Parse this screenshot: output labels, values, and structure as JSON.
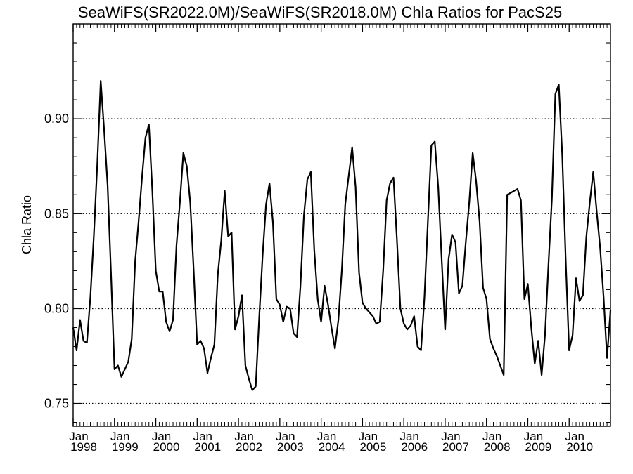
{
  "chart_data": {
    "type": "line",
    "title": "SeaWiFS(SR2022.0M)/SeaWiFS(SR2018.0M)  Chla Ratios for PacS25",
    "xlabel": "",
    "ylabel": "Chla Ratio",
    "xlim": [
      "1998-01",
      "2011-01"
    ],
    "ylim": [
      0.738,
      0.95
    ],
    "yticks": [
      0.75,
      0.8,
      0.85,
      0.9
    ],
    "ytick_labels": [
      "0.75",
      "0.80",
      "0.85",
      "0.90"
    ],
    "xticks": [
      {
        "month": "Jan",
        "year": "1998"
      },
      {
        "month": "Jan",
        "year": "1999"
      },
      {
        "month": "Jan",
        "year": "2000"
      },
      {
        "month": "Jan",
        "year": "2001"
      },
      {
        "month": "Jan",
        "year": "2002"
      },
      {
        "month": "Jan",
        "year": "2003"
      },
      {
        "month": "Jan",
        "year": "2004"
      },
      {
        "month": "Jan",
        "year": "2005"
      },
      {
        "month": "Jan",
        "year": "2006"
      },
      {
        "month": "Jan",
        "year": "2007"
      },
      {
        "month": "Jan",
        "year": "2008"
      },
      {
        "month": "Jan",
        "year": "2009"
      },
      {
        "month": "Jan",
        "year": "2010"
      }
    ],
    "grid": "horizontal dotted",
    "series": [
      {
        "color": "#000000",
        "points": [
          [
            "1998-01",
            0.79
          ],
          [
            "1998-02",
            0.778
          ],
          [
            "1998-03",
            0.794
          ],
          [
            "1998-04",
            0.783
          ],
          [
            "1998-05",
            0.782
          ],
          [
            "1998-06",
            0.806
          ],
          [
            "1998-07",
            0.838
          ],
          [
            "1998-08",
            0.876
          ],
          [
            "1998-09",
            0.92
          ],
          [
            "1998-10",
            0.894
          ],
          [
            "1998-11",
            0.865
          ],
          [
            "1998-12",
            0.818
          ],
          [
            "1999-01",
            0.768
          ],
          [
            "1999-02",
            0.77
          ],
          [
            "1999-03",
            0.764
          ],
          [
            "1999-04",
            0.768
          ],
          [
            "1999-05",
            0.772
          ],
          [
            "1999-06",
            0.784
          ],
          [
            "1999-07",
            0.825
          ],
          [
            "1999-08",
            0.846
          ],
          [
            "1999-09",
            0.869
          ],
          [
            "1999-10",
            0.89
          ],
          [
            "1999-11",
            0.897
          ],
          [
            "1999-12",
            0.862
          ],
          [
            "2000-01",
            0.82
          ],
          [
            "2000-02",
            0.809
          ],
          [
            "2000-03",
            0.809
          ],
          [
            "2000-04",
            0.793
          ],
          [
            "2000-05",
            0.788
          ],
          [
            "2000-06",
            0.794
          ],
          [
            "2000-07",
            0.833
          ],
          [
            "2000-08",
            0.856
          ],
          [
            "2000-09",
            0.882
          ],
          [
            "2000-10",
            0.875
          ],
          [
            "2000-11",
            0.856
          ],
          [
            "2000-12",
            0.82
          ],
          [
            "2001-01",
            0.781
          ],
          [
            "2001-02",
            0.783
          ],
          [
            "2001-03",
            0.779
          ],
          [
            "2001-04",
            0.766
          ],
          [
            "2001-05",
            0.774
          ],
          [
            "2001-06",
            0.781
          ],
          [
            "2001-07",
            0.818
          ],
          [
            "2001-08",
            0.836
          ],
          [
            "2001-09",
            0.862
          ],
          [
            "2001-10",
            0.838
          ],
          [
            "2001-11",
            0.84
          ],
          [
            "2001-12",
            0.789
          ],
          [
            "2002-01",
            0.796
          ],
          [
            "2002-02",
            0.807
          ],
          [
            "2002-03",
            0.77
          ],
          [
            "2002-04",
            0.763
          ],
          [
            "2002-05",
            0.757
          ],
          [
            "2002-06",
            0.759
          ],
          [
            "2002-07",
            0.795
          ],
          [
            "2002-08",
            0.828
          ],
          [
            "2002-09",
            0.855
          ],
          [
            "2002-10",
            0.866
          ],
          [
            "2002-11",
            0.845
          ],
          [
            "2002-12",
            0.805
          ],
          [
            "2003-01",
            0.802
          ],
          [
            "2003-02",
            0.793
          ],
          [
            "2003-03",
            0.801
          ],
          [
            "2003-04",
            0.8
          ],
          [
            "2003-05",
            0.787
          ],
          [
            "2003-06",
            0.785
          ],
          [
            "2003-07",
            0.812
          ],
          [
            "2003-08",
            0.849
          ],
          [
            "2003-09",
            0.868
          ],
          [
            "2003-10",
            0.872
          ],
          [
            "2003-11",
            0.831
          ],
          [
            "2003-12",
            0.805
          ],
          [
            "2004-01",
            0.793
          ],
          [
            "2004-02",
            0.812
          ],
          [
            "2004-03",
            0.802
          ],
          [
            "2004-04",
            0.79
          ],
          [
            "2004-05",
            0.779
          ],
          [
            "2004-06",
            0.794
          ],
          [
            "2004-07",
            0.82
          ],
          [
            "2004-08",
            0.855
          ],
          [
            "2004-09",
            0.87
          ],
          [
            "2004-10",
            0.885
          ],
          [
            "2004-11",
            0.864
          ],
          [
            "2004-12",
            0.819
          ],
          [
            "2005-01",
            0.803
          ],
          [
            "2005-02",
            0.8
          ],
          [
            "2005-03",
            0.798
          ],
          [
            "2005-04",
            0.796
          ],
          [
            "2005-05",
            0.792
          ],
          [
            "2005-06",
            0.793
          ],
          [
            "2005-07",
            0.82
          ],
          [
            "2005-08",
            0.857
          ],
          [
            "2005-09",
            0.866
          ],
          [
            "2005-10",
            0.869
          ],
          [
            "2005-11",
            0.836
          ],
          [
            "2005-12",
            0.8
          ],
          [
            "2006-01",
            0.792
          ],
          [
            "2006-02",
            0.789
          ],
          [
            "2006-03",
            0.791
          ],
          [
            "2006-04",
            0.796
          ],
          [
            "2006-05",
            0.78
          ],
          [
            "2006-06",
            0.778
          ],
          [
            "2006-07",
            0.806
          ],
          [
            "2006-08",
            0.846
          ],
          [
            "2006-09",
            0.886
          ],
          [
            "2006-10",
            0.888
          ],
          [
            "2006-11",
            0.864
          ],
          [
            "2006-12",
            0.826
          ],
          [
            "2007-01",
            0.789
          ],
          [
            "2007-02",
            0.826
          ],
          [
            "2007-03",
            0.839
          ],
          [
            "2007-04",
            0.835
          ],
          [
            "2007-05",
            0.808
          ],
          [
            "2007-06",
            0.812
          ],
          [
            "2007-07",
            0.835
          ],
          [
            "2007-08",
            0.856
          ],
          [
            "2007-09",
            0.882
          ],
          [
            "2007-10",
            0.867
          ],
          [
            "2007-11",
            0.846
          ],
          [
            "2007-12",
            0.811
          ],
          [
            "2008-01",
            0.805
          ],
          [
            "2008-02",
            0.784
          ],
          [
            "2008-03",
            0.779
          ],
          [
            "2008-04",
            0.775
          ],
          [
            "2008-05",
            0.77
          ],
          [
            "2008-06",
            0.765
          ],
          [
            "2008-07",
            0.86
          ],
          [
            "2008-08",
            0.861
          ],
          [
            "2008-09",
            0.862
          ],
          [
            "2008-10",
            0.863
          ],
          [
            "2008-11",
            0.857
          ],
          [
            "2008-12",
            0.805
          ],
          [
            "2009-01",
            0.813
          ],
          [
            "2009-02",
            0.79
          ],
          [
            "2009-03",
            0.771
          ],
          [
            "2009-04",
            0.783
          ],
          [
            "2009-05",
            0.765
          ],
          [
            "2009-06",
            0.786
          ],
          [
            "2009-07",
            0.823
          ],
          [
            "2009-08",
            0.858
          ],
          [
            "2009-09",
            0.913
          ],
          [
            "2009-10",
            0.918
          ],
          [
            "2009-11",
            0.881
          ],
          [
            "2009-12",
            0.826
          ],
          [
            "2010-01",
            0.778
          ],
          [
            "2010-02",
            0.786
          ],
          [
            "2010-03",
            0.816
          ],
          [
            "2010-04",
            0.804
          ],
          [
            "2010-05",
            0.807
          ],
          [
            "2010-06",
            0.838
          ],
          [
            "2010-07",
            0.856
          ],
          [
            "2010-08",
            0.872
          ],
          [
            "2010-09",
            0.851
          ],
          [
            "2010-10",
            0.832
          ],
          [
            "2010-11",
            0.806
          ],
          [
            "2010-12",
            0.774
          ],
          [
            "2011-01",
            0.799
          ]
        ]
      }
    ]
  }
}
